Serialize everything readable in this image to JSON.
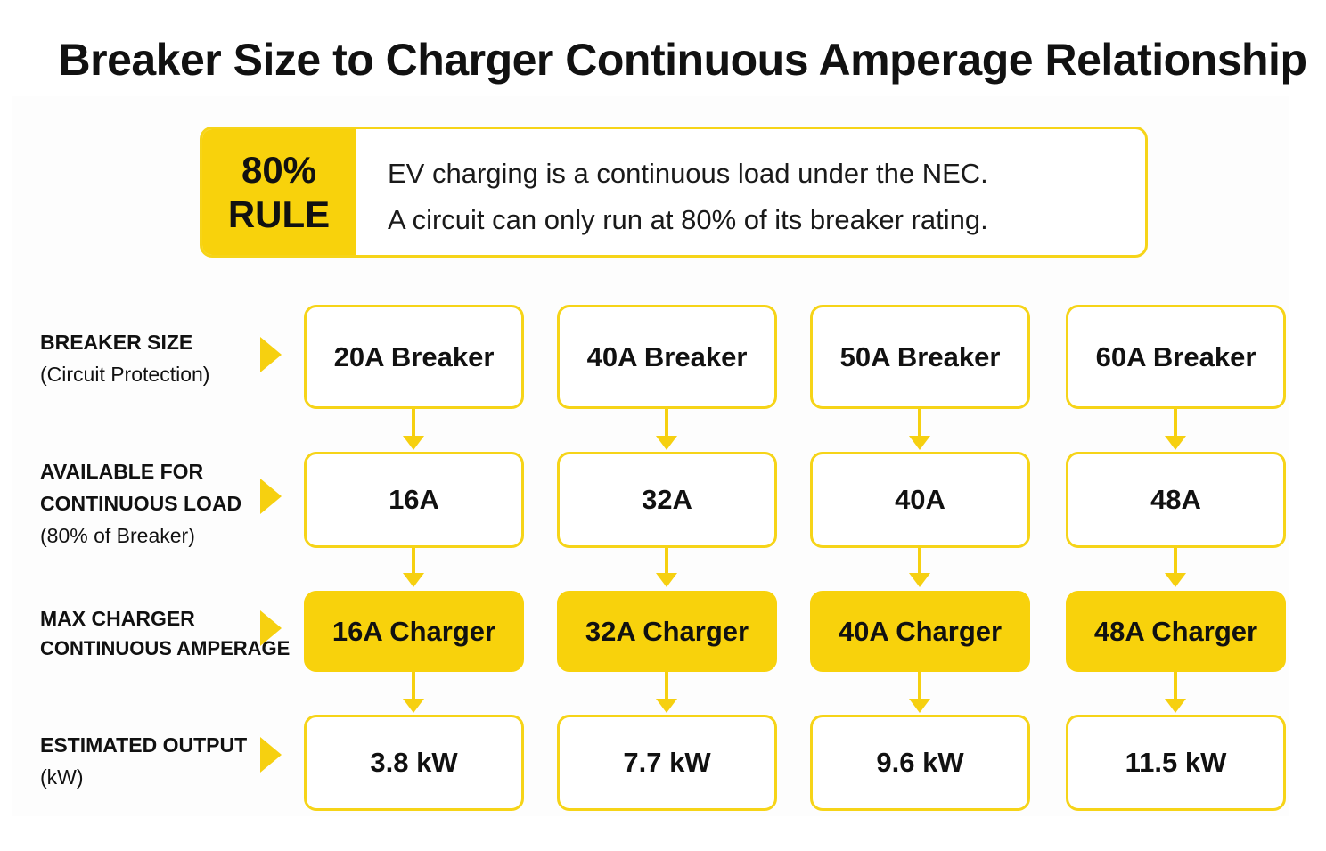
{
  "title": "Breaker Size to Charger Continuous Amperage Relationship",
  "rule": {
    "badge_line1": "80%",
    "badge_line2": "RULE",
    "line1": "EV charging is a continuous load under the NEC.",
    "line2": "A circuit can only run at 80% of its breaker rating."
  },
  "rows": [
    {
      "label_main": "BREAKER SIZE",
      "label_main2": "",
      "label_sub": "(Circuit Protection)"
    },
    {
      "label_main": "AVAILABLE FOR",
      "label_main2": "CONTINUOUS LOAD",
      "label_sub": "(80% of Breaker)"
    },
    {
      "label_main": "MAX CHARGER",
      "label_main2": "CONTINUOUS AMPERAGE",
      "label_sub": ""
    },
    {
      "label_main": "ESTIMATED OUTPUT",
      "label_main2": "",
      "label_sub": "(kW)"
    }
  ],
  "columns": [
    {
      "breaker": "20A Breaker",
      "available": "16A",
      "charger": "16A Charger",
      "output": "3.8 kW"
    },
    {
      "breaker": "40A Breaker",
      "available": "32A",
      "charger": "32A Charger",
      "output": "7.7 kW"
    },
    {
      "breaker": "50A Breaker",
      "available": "40A",
      "charger": "40A Charger",
      "output": "9.6 kW"
    },
    {
      "breaker": "60A Breaker",
      "available": "48A",
      "charger": "48A Charger",
      "output": "11.5 kW"
    }
  ],
  "colors": {
    "accent": "#f8d20c",
    "border": "#f6d418",
    "text": "#111111"
  },
  "icons": {
    "row_arrow": "triangle-right-icon",
    "flow_arrow": "arrow-down-icon"
  }
}
